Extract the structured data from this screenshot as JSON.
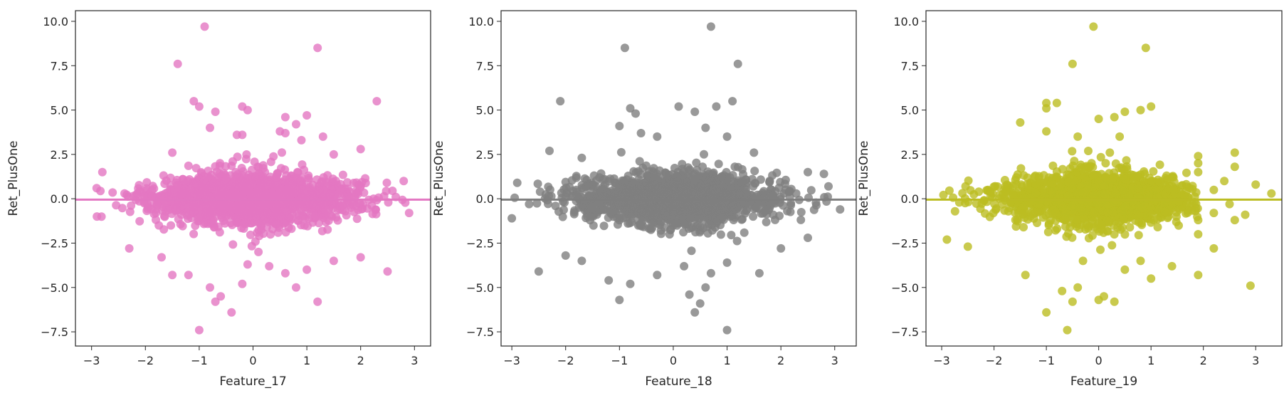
{
  "chart_data": [
    {
      "type": "scatter",
      "xlabel": "Feature_17",
      "ylabel": "Ret_PlusOne",
      "color": "#e377c2",
      "xlim": [
        -3.3,
        3.3
      ],
      "ylim": [
        -8.3,
        10.6
      ],
      "xticks": [
        -3,
        -2,
        -1,
        0,
        1,
        2,
        3
      ],
      "xtick_labels": [
        "−3",
        "−2",
        "−1",
        "0",
        "1",
        "2",
        "3"
      ],
      "yticks": [
        10.0,
        7.5,
        5.0,
        2.5,
        0.0,
        -2.5,
        -5.0,
        -7.5
      ],
      "ytick_labels": [
        "10.0",
        "7.5",
        "5.0",
        "2.5",
        "0.0",
        "−2.5",
        "−5.0",
        "−7.5"
      ],
      "grid": false,
      "regression_line": {
        "slope": 0.0,
        "intercept": -0.05
      },
      "cloud": {
        "x_range": [
          -3.0,
          3.0
        ],
        "y_sd": 0.85
      },
      "points": [
        [
          -0.9,
          9.7
        ],
        [
          1.2,
          8.5
        ],
        [
          -1.4,
          7.6
        ],
        [
          2.3,
          5.5
        ],
        [
          -1.1,
          5.5
        ],
        [
          -1.0,
          5.2
        ],
        [
          -0.2,
          5.2
        ],
        [
          -0.1,
          5.0
        ],
        [
          -0.7,
          4.9
        ],
        [
          0.6,
          4.6
        ],
        [
          1.0,
          4.7
        ],
        [
          0.8,
          4.2
        ],
        [
          -0.8,
          4.0
        ],
        [
          0.5,
          3.8
        ],
        [
          0.6,
          3.7
        ],
        [
          -0.3,
          3.6
        ],
        [
          -0.2,
          3.6
        ],
        [
          1.3,
          3.5
        ],
        [
          0.9,
          3.3
        ],
        [
          2.0,
          2.8
        ],
        [
          -1.5,
          2.6
        ],
        [
          1.5,
          2.5
        ],
        [
          2.8,
          1.0
        ],
        [
          -2.8,
          1.5
        ],
        [
          -1.2,
          -4.3
        ],
        [
          -1.5,
          -4.3
        ],
        [
          -0.8,
          -5.0
        ],
        [
          -0.6,
          -5.5
        ],
        [
          -0.4,
          -6.4
        ],
        [
          -0.7,
          -5.8
        ],
        [
          -0.2,
          -4.8
        ],
        [
          0.8,
          -5.0
        ],
        [
          1.2,
          -5.8
        ],
        [
          1.0,
          -4.0
        ],
        [
          1.5,
          -3.5
        ],
        [
          2.5,
          -4.1
        ],
        [
          2.0,
          -3.3
        ],
        [
          -1.0,
          -7.4
        ],
        [
          -2.3,
          -2.8
        ],
        [
          -1.7,
          -3.3
        ],
        [
          0.3,
          -3.8
        ],
        [
          0.6,
          -4.2
        ],
        [
          -0.1,
          -3.7
        ],
        [
          0.1,
          -3.0
        ],
        [
          2.9,
          -0.8
        ],
        [
          -2.9,
          -1.0
        ]
      ]
    },
    {
      "type": "scatter",
      "xlabel": "Feature_18",
      "ylabel": "Ret_PlusOne",
      "color": "#7f7f7f",
      "xlim": [
        -3.2,
        3.4
      ],
      "ylim": [
        -8.3,
        10.6
      ],
      "xticks": [
        -3,
        -2,
        -1,
        0,
        1,
        2,
        3
      ],
      "xtick_labels": [
        "−3",
        "−2",
        "−1",
        "0",
        "1",
        "2",
        "3"
      ],
      "yticks": [
        10.0,
        7.5,
        5.0,
        2.5,
        0.0,
        -2.5,
        -5.0,
        -7.5
      ],
      "ytick_labels": [
        "10.0",
        "7.5",
        "5.0",
        "2.5",
        "0.0",
        "−2.5",
        "−5.0",
        "−7.5"
      ],
      "grid": false,
      "regression_line": {
        "slope": 0.0,
        "intercept": -0.05
      },
      "cloud": {
        "x_range": [
          -3.0,
          3.2
        ],
        "y_sd": 0.85
      },
      "points": [
        [
          0.7,
          9.7
        ],
        [
          -0.9,
          8.5
        ],
        [
          1.2,
          7.6
        ],
        [
          -2.1,
          5.5
        ],
        [
          1.1,
          5.5
        ],
        [
          0.8,
          5.2
        ],
        [
          0.1,
          5.2
        ],
        [
          -0.8,
          5.1
        ],
        [
          -0.7,
          4.8
        ],
        [
          0.4,
          4.9
        ],
        [
          -1.0,
          4.1
        ],
        [
          0.6,
          4.0
        ],
        [
          1.0,
          3.5
        ],
        [
          -0.6,
          3.7
        ],
        [
          -0.3,
          3.5
        ],
        [
          1.5,
          2.6
        ],
        [
          -1.7,
          2.3
        ],
        [
          2.5,
          1.5
        ],
        [
          -2.3,
          2.7
        ],
        [
          2.8,
          1.4
        ],
        [
          -2.9,
          0.9
        ],
        [
          3.1,
          -0.6
        ],
        [
          -2.5,
          -4.1
        ],
        [
          -1.0,
          -5.7
        ],
        [
          -1.2,
          -4.6
        ],
        [
          -0.8,
          -4.8
        ],
        [
          -0.3,
          -4.3
        ],
        [
          0.3,
          -5.4
        ],
        [
          0.5,
          -5.9
        ],
        [
          0.6,
          -5.0
        ],
        [
          0.4,
          -6.4
        ],
        [
          0.7,
          -4.2
        ],
        [
          1.0,
          -7.4
        ],
        [
          1.6,
          -4.2
        ],
        [
          1.0,
          -3.6
        ],
        [
          2.0,
          -2.8
        ],
        [
          -1.7,
          -3.5
        ],
        [
          -2.0,
          -3.2
        ],
        [
          0.2,
          -3.8
        ],
        [
          2.5,
          -2.2
        ],
        [
          -3.0,
          -1.1
        ]
      ]
    },
    {
      "type": "scatter",
      "xlabel": "Feature_19",
      "ylabel": "Ret_PlusOne",
      "color": "#bcbd22",
      "xlim": [
        -3.3,
        3.5
      ],
      "ylim": [
        -8.3,
        10.6
      ],
      "xticks": [
        -3,
        -2,
        -1,
        0,
        1,
        2,
        3
      ],
      "xtick_labels": [
        "−3",
        "−2",
        "−1",
        "0",
        "1",
        "2",
        "3"
      ],
      "yticks": [
        10.0,
        7.5,
        5.0,
        2.5,
        0.0,
        -2.5,
        -5.0,
        -7.5
      ],
      "ytick_labels": [
        "10.0",
        "7.5",
        "5.0",
        "2.5",
        "0.0",
        "−2.5",
        "−5.0",
        "−7.5"
      ],
      "grid": false,
      "regression_line": {
        "slope": 0.0,
        "intercept": -0.05
      },
      "cloud": {
        "x_range": [
          -3.0,
          1.9
        ],
        "y_sd": 0.85
      },
      "points": [
        [
          -0.1,
          9.7
        ],
        [
          0.9,
          8.5
        ],
        [
          -0.5,
          7.6
        ],
        [
          -1.0,
          5.4
        ],
        [
          -0.8,
          5.4
        ],
        [
          -1.0,
          5.1
        ],
        [
          1.0,
          5.2
        ],
        [
          0.5,
          4.9
        ],
        [
          0.8,
          5.0
        ],
        [
          0.0,
          4.5
        ],
        [
          -1.5,
          4.3
        ],
        [
          0.3,
          4.6
        ],
        [
          -1.0,
          3.8
        ],
        [
          -0.4,
          3.5
        ],
        [
          0.4,
          3.5
        ],
        [
          1.9,
          2.4
        ],
        [
          2.6,
          2.6
        ],
        [
          2.6,
          1.8
        ],
        [
          3.0,
          0.8
        ],
        [
          3.3,
          0.3
        ],
        [
          2.4,
          1.0
        ],
        [
          2.2,
          0.5
        ],
        [
          2.5,
          -0.3
        ],
        [
          2.8,
          -0.9
        ],
        [
          2.2,
          -0.8
        ],
        [
          2.6,
          -1.2
        ],
        [
          -2.9,
          -2.3
        ],
        [
          -1.0,
          -6.4
        ],
        [
          -0.6,
          -7.4
        ],
        [
          -0.7,
          -5.2
        ],
        [
          -0.4,
          -5.0
        ],
        [
          -0.5,
          -5.8
        ],
        [
          0.0,
          -5.7
        ],
        [
          0.1,
          -5.5
        ],
        [
          0.3,
          -5.8
        ],
        [
          0.5,
          -4.0
        ],
        [
          0.8,
          -3.5
        ],
        [
          1.0,
          -4.5
        ],
        [
          1.9,
          -4.3
        ],
        [
          2.2,
          -2.8
        ],
        [
          2.9,
          -4.9
        ],
        [
          -1.4,
          -4.3
        ],
        [
          -2.5,
          -2.7
        ],
        [
          -0.3,
          -3.5
        ],
        [
          1.4,
          -3.8
        ],
        [
          1.9,
          -2.0
        ],
        [
          1.9,
          -1.2
        ],
        [
          1.9,
          1.5
        ],
        [
          1.9,
          2.0
        ]
      ]
    }
  ]
}
